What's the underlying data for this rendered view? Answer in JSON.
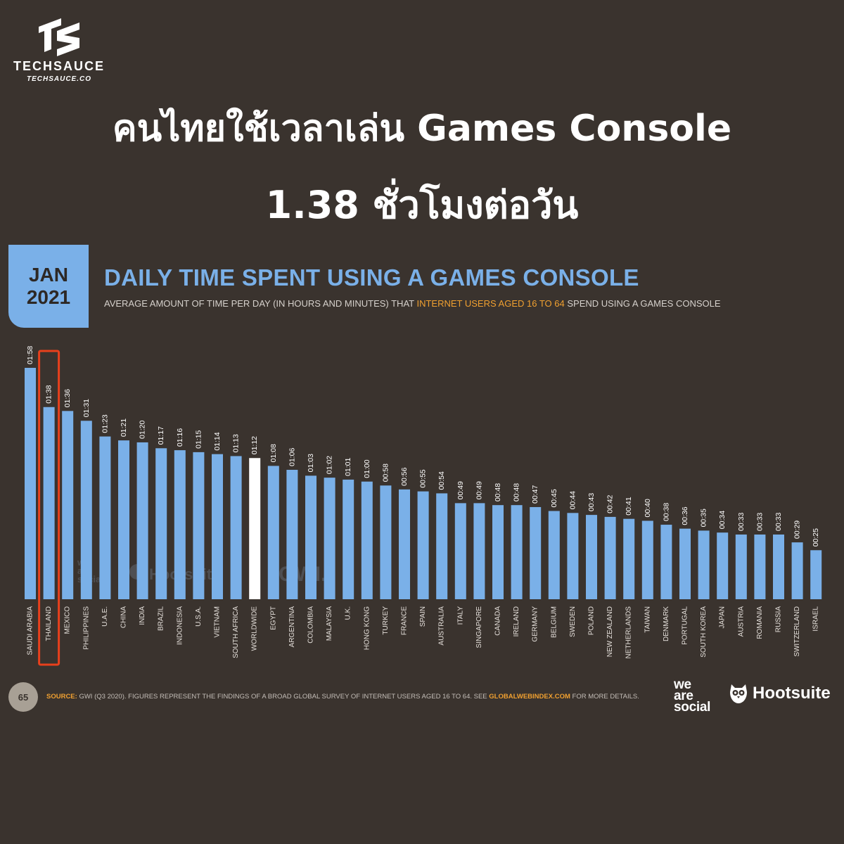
{
  "brand": {
    "name": "TECHSAUCE",
    "url": "TECHSAUCE.CO"
  },
  "headline": {
    "line1": "คนไทยใช้เวลาเล่น Games Console",
    "line2": "1.38 ชั่วโมงต่อวัน"
  },
  "date_badge": {
    "month": "JAN",
    "year": "2021"
  },
  "subtitle": {
    "before": "AVERAGE AMOUNT OF TIME PER DAY (IN HOURS AND MINUTES) THAT ",
    "highlight": "INTERNET USERS AGED 16 TO 64",
    "after": " SPEND USING A GAMES CONSOLE"
  },
  "footer": {
    "page_number": "65",
    "source_label": "SOURCE:",
    "source_text": " GWI (Q3 2020). FIGURES REPRESENT THE FINDINGS OF A BROAD GLOBAL SURVEY OF INTERNET USERS AGED 16 TO 64. SEE ",
    "source_link": "GLOBALWEBINDEX.COM",
    "source_after": " FOR MORE DETAILS."
  },
  "logos": {
    "wearesocial": [
      "we",
      "are",
      "social"
    ],
    "hootsuite": "Hootsuite"
  },
  "watermarks": {
    "wearesocial": [
      "we",
      "are",
      "social"
    ],
    "hootsuite": "Hootsuite",
    "gwi": "GWI."
  },
  "colors": {
    "background": "#3a332e",
    "bar": "#7ab0e8",
    "bar_highlight": "#ffffff",
    "accent": "#f0a030",
    "callout": "#e8401c"
  },
  "chart_data": {
    "type": "bar",
    "title": "DAILY TIME SPENT USING A GAMES CONSOLE",
    "categories": [
      "SAUDI ARABIA",
      "THAILAND",
      "MEXICO",
      "PHILIPPINES",
      "U.A.E.",
      "CHINA",
      "INDIA",
      "BRAZIL",
      "INDONESIA",
      "U.S.A.",
      "VIETNAM",
      "SOUTH AFRICA",
      "WORLDWIDE",
      "EGYPT",
      "ARGENTINA",
      "COLOMBIA",
      "MALAYSIA",
      "U.K.",
      "HONG KONG",
      "TURKEY",
      "FRANCE",
      "SPAIN",
      "AUSTRALIA",
      "ITALY",
      "SINGAPORE",
      "CANADA",
      "IRELAND",
      "GERMANY",
      "BELGIUM",
      "SWEDEN",
      "POLAND",
      "NEW ZEALAND",
      "NETHERLANDS",
      "TAIWAN",
      "DENMARK",
      "PORTUGAL",
      "SOUTH KOREA",
      "JAPAN",
      "AUSTRIA",
      "ROMANIA",
      "RUSSIA",
      "SWITZERLAND",
      "ISRAEL"
    ],
    "labels": [
      "01:58",
      "01:38",
      "01:36",
      "01:31",
      "01:23",
      "01:21",
      "01:20",
      "01:17",
      "01:16",
      "01:15",
      "01:14",
      "01:13",
      "01:12",
      "01:08",
      "01:06",
      "01:03",
      "01:02",
      "01:01",
      "01:00",
      "00:58",
      "00:56",
      "00:55",
      "00:54",
      "00:49",
      "00:49",
      "00:48",
      "00:48",
      "00:47",
      "00:45",
      "00:44",
      "00:43",
      "00:42",
      "00:41",
      "00:40",
      "00:38",
      "00:36",
      "00:35",
      "00:34",
      "00:33",
      "00:33",
      "00:33",
      "00:29",
      "00:25"
    ],
    "values_minutes": [
      118,
      98,
      96,
      91,
      83,
      81,
      80,
      77,
      76,
      75,
      74,
      73,
      72,
      68,
      66,
      63,
      62,
      61,
      60,
      58,
      56,
      55,
      54,
      49,
      49,
      48,
      48,
      47,
      45,
      44,
      43,
      42,
      41,
      40,
      38,
      36,
      35,
      34,
      33,
      33,
      33,
      29,
      25
    ],
    "highlight_category": "WORLDWIDE",
    "callout_category": "THAILAND",
    "ylim": [
      0,
      118
    ],
    "grid": false,
    "legend": "none"
  }
}
